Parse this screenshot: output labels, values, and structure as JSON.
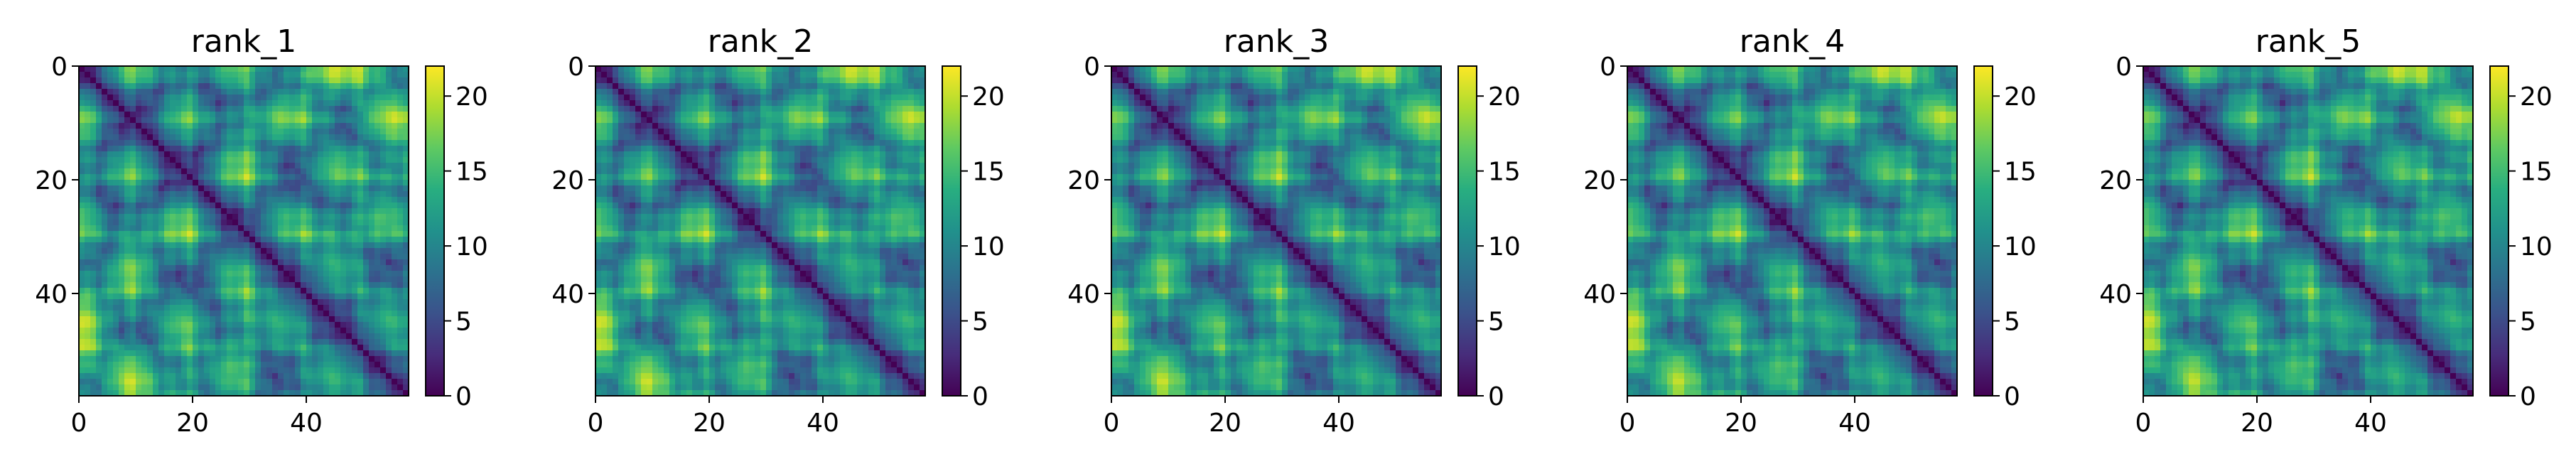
{
  "chart_data": [
    {
      "type": "heatmap",
      "title": "rank_1",
      "rows": 58,
      "cols": 58,
      "xticks": [
        0,
        20,
        40
      ],
      "yticks": [
        0,
        20,
        40
      ],
      "colorbar_ticks": [
        0,
        5,
        10,
        15,
        20
      ],
      "vmin": 0,
      "vmax": 22,
      "colormap": "viridis"
    },
    {
      "type": "heatmap",
      "title": "rank_2",
      "rows": 58,
      "cols": 58,
      "xticks": [
        0,
        20,
        40
      ],
      "yticks": [
        0,
        20,
        40
      ],
      "colorbar_ticks": [
        0,
        5,
        10,
        15,
        20
      ],
      "vmin": 0,
      "vmax": 22,
      "colormap": "viridis"
    },
    {
      "type": "heatmap",
      "title": "rank_3",
      "rows": 58,
      "cols": 58,
      "xticks": [
        0,
        20,
        40
      ],
      "yticks": [
        0,
        20,
        40
      ],
      "colorbar_ticks": [
        0,
        5,
        10,
        15,
        20
      ],
      "vmin": 0,
      "vmax": 22,
      "colormap": "viridis"
    },
    {
      "type": "heatmap",
      "title": "rank_4",
      "rows": 58,
      "cols": 58,
      "xticks": [
        0,
        20,
        40
      ],
      "yticks": [
        0,
        20,
        40
      ],
      "colorbar_ticks": [
        0,
        5,
        10,
        15,
        20
      ],
      "vmin": 0,
      "vmax": 22,
      "colormap": "viridis"
    },
    {
      "type": "heatmap",
      "title": "rank_5",
      "rows": 58,
      "cols": 58,
      "xticks": [
        0,
        20,
        40
      ],
      "yticks": [
        0,
        20,
        40
      ],
      "colorbar_ticks": [
        0,
        5,
        10,
        15,
        20
      ],
      "vmin": 0,
      "vmax": 22,
      "colormap": "viridis"
    }
  ]
}
